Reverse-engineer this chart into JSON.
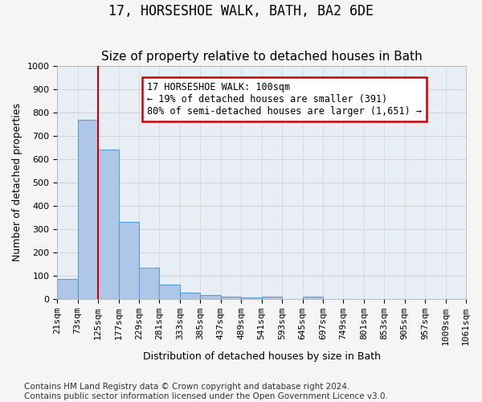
{
  "title": "17, HORSESHOE WALK, BATH, BA2 6DE",
  "subtitle": "Size of property relative to detached houses in Bath",
  "xlabel": "Distribution of detached houses by size in Bath",
  "ylabel": "Number of detached properties",
  "bin_labels": [
    "21sqm",
    "73sqm",
    "125sqm",
    "177sqm",
    "229sqm",
    "281sqm",
    "333sqm",
    "385sqm",
    "437sqm",
    "489sqm",
    "541sqm",
    "593sqm",
    "645sqm",
    "697sqm",
    "749sqm",
    "801sqm",
    "853sqm",
    "905sqm",
    "957sqm",
    "1009sqm",
    "1061sqm"
  ],
  "bar_heights": [
    85,
    770,
    640,
    330,
    135,
    60,
    25,
    15,
    10,
    5,
    10,
    0,
    10,
    0,
    0,
    0,
    0,
    0,
    0,
    0
  ],
  "bar_color": "#aec6e8",
  "bar_edge_color": "#5a9fd4",
  "vline_color": "#cc0000",
  "annotation_text": "17 HORSESHOE WALK: 100sqm\n← 19% of detached houses are smaller (391)\n80% of semi-detached houses are larger (1,651) →",
  "annotation_box_color": "#ffffff",
  "annotation_edge_color": "#cc0000",
  "ylim": [
    0,
    1000
  ],
  "yticks": [
    0,
    100,
    200,
    300,
    400,
    500,
    600,
    700,
    800,
    900,
    1000
  ],
  "grid_color": "#cccccc",
  "bg_color": "#e8eef5",
  "fig_bg_color": "#f5f5f5",
  "footer_text": "Contains HM Land Registry data © Crown copyright and database right 2024.\nContains public sector information licensed under the Open Government Licence v3.0.",
  "title_fontsize": 12,
  "subtitle_fontsize": 11,
  "axis_label_fontsize": 9,
  "tick_fontsize": 8,
  "annotation_fontsize": 8.5,
  "footer_fontsize": 7.5
}
